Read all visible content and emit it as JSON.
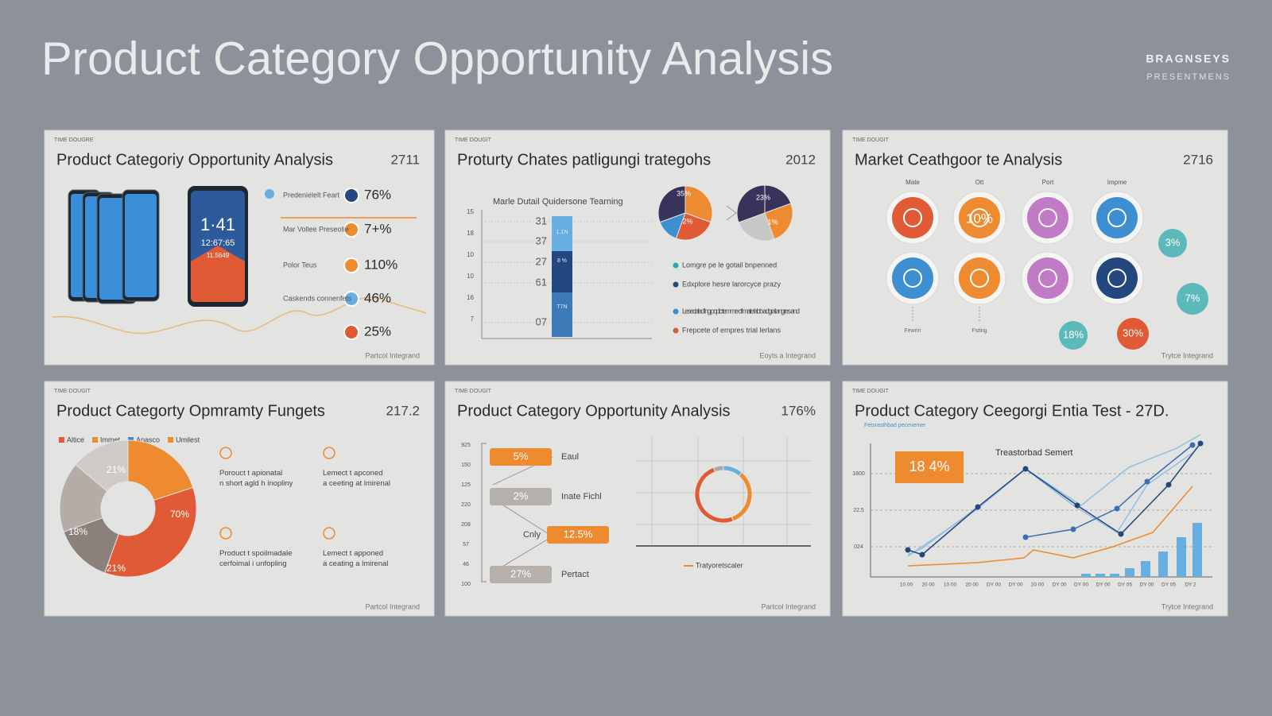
{
  "header": {
    "title": "Product Category Opportunity Analysis",
    "brand": "BRAGNSEYS",
    "brand_sub": "PRESENTMENS"
  },
  "slides": [
    {
      "tag": "TIME DOUGRE",
      "title": "Product Categoriy Opportunity Analysis",
      "number": "2711",
      "footer": "Partcol Integrand",
      "phone_time": "1·41",
      "phone_date": "12:67:65",
      "phone_sub": "11.5649",
      "items": [
        {
          "label": "Predenielelt Feart",
          "value": "76%"
        },
        {
          "label": "Mar Vollee Preseolie",
          "value": "7+%"
        },
        {
          "label": "Polor Teus",
          "value": "110%"
        },
        {
          "label": "Caskends connenfets",
          "value": "46%"
        },
        {
          "value": "25%"
        }
      ]
    },
    {
      "tag": "TIME DOUGIT",
      "title": "Proturty Chates patligungi trategohs",
      "number": "2012",
      "footer": "Eoyts a Integrand",
      "chart_title": "Marle Dutail Quidersone Tearning",
      "axis_labels": [
        "15",
        "18",
        "10",
        "10",
        "16",
        "7"
      ],
      "bar_labels": [
        "31",
        "37",
        "27",
        "61",
        "07"
      ],
      "segment_labels": [
        "1.1N",
        "8 %",
        "T7N"
      ],
      "pie_labels": [
        "35%",
        "2%",
        "23%",
        "1%"
      ],
      "legend": [
        "Lomgre pe le gotail bnpenned",
        "Edxplore hesre larorcyce prazy",
        "Lesecialad lng poplc temme of mate labb adgral angres and",
        "Frepcete of empres trial lerlans"
      ]
    },
    {
      "tag": "TIME DOUGIT",
      "title": "Market Ceathgoor te Analysis",
      "number": "2716",
      "footer": "Trytce Integrand",
      "column_labels": [
        "Mate",
        "Ott",
        "Port",
        "Impme"
      ],
      "icon_value": "10%",
      "side_labels": [
        "3%",
        "7%",
        "18%",
        "30%"
      ],
      "bottom_labels": [
        "Fewrin",
        "Fsting"
      ]
    },
    {
      "tag": "TIME DOUGIT",
      "title": "Product Categorty Opmramty Fungets",
      "number": "217.2",
      "footer": "Partcol Integrand",
      "legend": [
        "Altice",
        "Immet",
        "Apasco",
        "Umilest"
      ],
      "donut_labels": [
        "21%",
        "70%",
        "18%",
        "21%"
      ],
      "notes": [
        "Porouct t apionatal n short agld h inopliny",
        "Lemect t apconed a ceeting at lmirenal",
        "Product t spoilmadale cerfoimal i unfopling",
        "Lemect t apponed a ceating a lmirenal"
      ]
    },
    {
      "tag": "TIME DOUGIT",
      "title": "Product Category Opportunity Analysis",
      "number": "176%",
      "footer": "Partcol Integrand",
      "axis_labels": [
        "925",
        "150",
        "125",
        "220",
        "208",
        "57",
        "46",
        "100"
      ],
      "tags": [
        {
          "value": "5%",
          "label": "Eaul"
        },
        {
          "value": "2%",
          "label": "Inate Fichl"
        },
        {
          "value": "12.5%",
          "label": "Cnly"
        },
        {
          "value": "27%",
          "label": "Pertact"
        }
      ],
      "legend": "Tratyoretscaler"
    },
    {
      "tag": "TIME DOUGIT",
      "title": "Product Category Ceegorgi Entia Test - 27D.",
      "subtitle": "Fetsrasthbad pecevemer",
      "footer": "Trytce Integrand",
      "badge": "18 4%",
      "chart_title": "Treastorbad Semert",
      "y_labels": [
        "1800",
        "22.5",
        "024"
      ],
      "x_labels": [
        "10 00",
        "20 00",
        "10 00",
        "20 00",
        "DY 00",
        "DY 00",
        "20 00",
        "DY 00",
        "DY 00",
        "DY 00",
        "DY 05",
        "DY 00",
        "DY 05",
        "DY 2"
      ]
    }
  ]
}
